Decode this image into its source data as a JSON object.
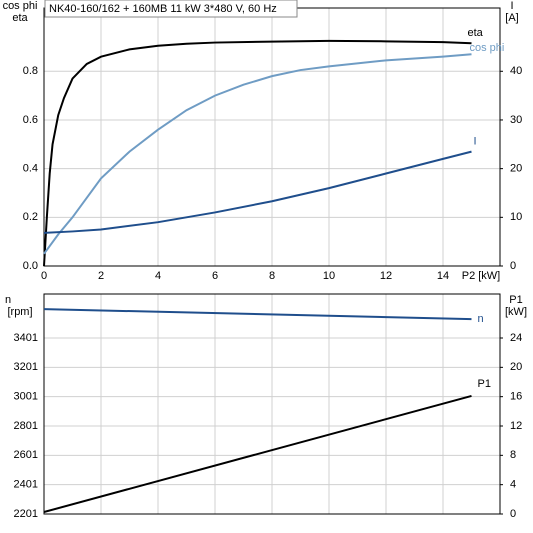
{
  "chart_data": [
    {
      "type": "line",
      "title": "NK40-160/162 + 160MB   11 kW   3*480 V, 60 Hz",
      "xlabel": "P2 [kW]",
      "ylabel": [
        "cos phi",
        "eta"
      ],
      "y2label": [
        "I",
        "[A]"
      ],
      "xlim": [
        0,
        16
      ],
      "xticks": [
        0,
        2,
        4,
        6,
        8,
        10,
        12,
        14
      ],
      "ylim": [
        0,
        1.06
      ],
      "yticks": [
        {
          "value": 0,
          "label": "0.0"
        },
        0.2,
        0.4,
        0.6,
        0.8
      ],
      "y2lim": [
        0,
        53
      ],
      "y2ticks": [
        0,
        10,
        20,
        30,
        40
      ],
      "grid": true,
      "series": [
        {
          "name": "eta",
          "color": "#000000",
          "x": [
            0,
            0.1,
            0.2,
            0.3,
            0.5,
            0.7,
            1,
            1.5,
            2,
            3,
            4,
            5,
            6,
            8,
            10,
            12,
            14,
            15
          ],
          "values": [
            0,
            0.2,
            0.38,
            0.5,
            0.62,
            0.69,
            0.77,
            0.83,
            0.86,
            0.89,
            0.905,
            0.913,
            0.918,
            0.922,
            0.925,
            0.923,
            0.92,
            0.915
          ]
        },
        {
          "name": "cos phi",
          "color": "#6f9cc4",
          "x": [
            0,
            0.5,
            1,
            2,
            3,
            4,
            5,
            6,
            7,
            8,
            9,
            10,
            12,
            14,
            15
          ],
          "values": [
            0.05,
            0.13,
            0.2,
            0.36,
            0.47,
            0.56,
            0.64,
            0.7,
            0.745,
            0.78,
            0.805,
            0.82,
            0.845,
            0.86,
            0.87
          ]
        },
        {
          "name": "I",
          "color": "#1f4e8c",
          "axis": "y2",
          "x": [
            0,
            1,
            2,
            4,
            6,
            8,
            10,
            12,
            14,
            15
          ],
          "values": [
            6.8,
            7.1,
            7.5,
            9,
            11,
            13.3,
            16,
            19,
            22,
            23.5
          ]
        }
      ]
    },
    {
      "type": "line",
      "ylabel": [
        "n",
        "[rpm]"
      ],
      "y2label": [
        "P1",
        "[kW]"
      ],
      "xlim": [
        0,
        16
      ],
      "xticks": [
        0,
        2,
        4,
        6,
        8,
        10,
        12,
        14
      ],
      "ylim": [
        2201,
        3701
      ],
      "yticks": [
        2201,
        2401,
        2601,
        2801,
        3001,
        3201,
        3401
      ],
      "y2lim": [
        0,
        30
      ],
      "y2ticks": [
        0,
        4,
        8,
        12,
        16,
        20,
        24
      ],
      "grid": true,
      "series": [
        {
          "name": "n",
          "color": "#1f4e8c",
          "x": [
            0,
            15
          ],
          "values": [
            3598,
            3530
          ]
        },
        {
          "name": "P1",
          "color": "#000000",
          "axis": "y2",
          "x": [
            0,
            15
          ],
          "values": [
            0.27,
            16.1
          ]
        }
      ]
    }
  ]
}
